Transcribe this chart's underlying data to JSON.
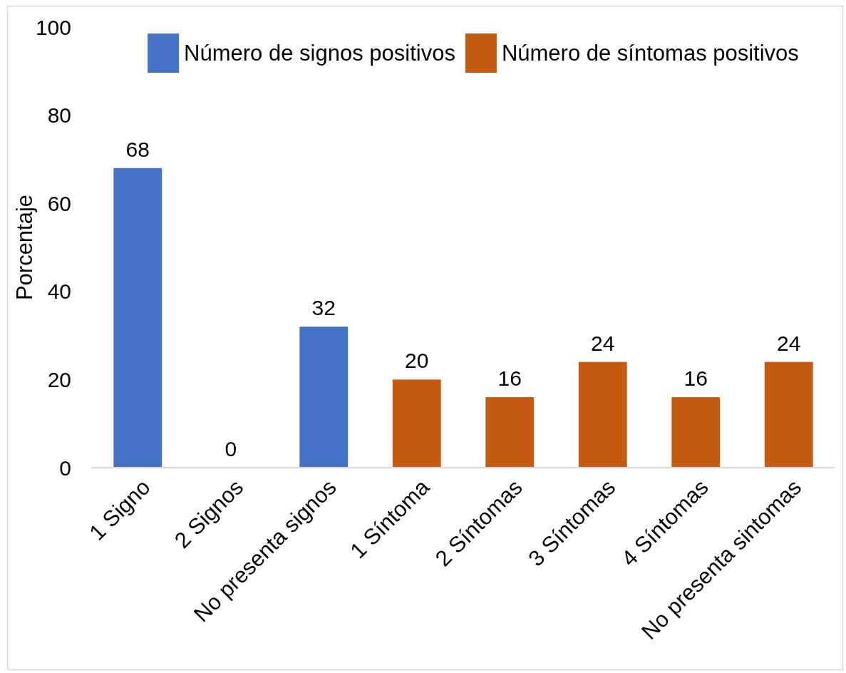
{
  "chart_data": {
    "type": "bar",
    "ylabel": "Porcentaje",
    "categories": [
      "1 Signo",
      "2 Signos",
      "No presenta signos",
      "1 Síntoma",
      "2 Síntomas",
      "3 Síntomas",
      "4 Síntomas",
      "No presenta sintomas"
    ],
    "series": [
      {
        "name": "Número de signos positivos",
        "color": "#4472c4",
        "values": [
          68,
          0,
          32,
          null,
          null,
          null,
          null,
          null
        ]
      },
      {
        "name": "Número de síntomas positivos",
        "color": "#c55a11",
        "values": [
          null,
          null,
          null,
          20,
          16,
          24,
          16,
          24
        ]
      }
    ],
    "ylim": [
      0,
      100
    ],
    "yticks": [
      0,
      20,
      40,
      60,
      80,
      100
    ],
    "legend": "top",
    "data_labels": true
  }
}
